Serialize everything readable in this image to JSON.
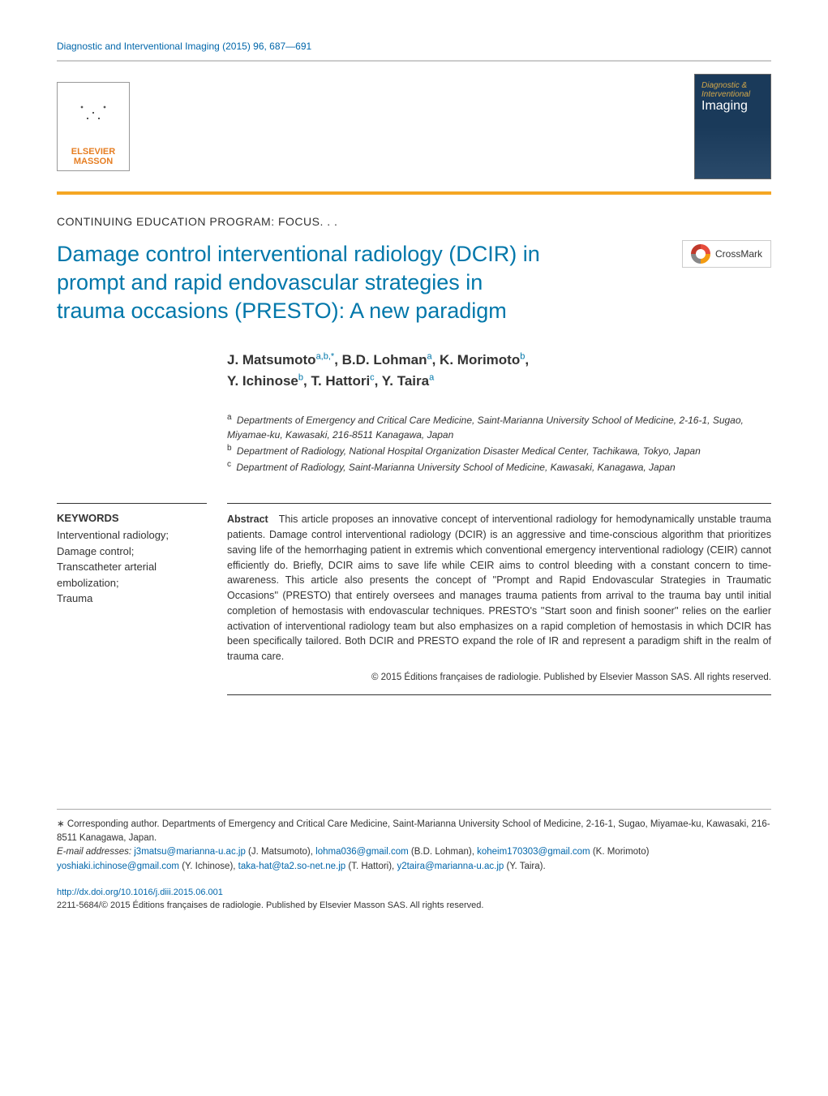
{
  "journal_ref": "Diagnostic and Interventional Imaging (2015) 96, 687—691",
  "publisher_logo": {
    "line1": "ELSEVIER",
    "line2": "MASSON"
  },
  "journal_cover": {
    "small": "Diagnostic & Interventional",
    "large": "Imaging"
  },
  "section_label": "CONTINUING EDUCATION PROGRAM: FOCUS. . .",
  "title": "Damage control interventional radiology (DCIR) in prompt and rapid endovascular strategies in trauma occasions (PRESTO): A new paradigm",
  "crossmark_label": "CrossMark",
  "authors_line1_html": "J. Matsumoto<sup>a,b,*</sup>, B.D. Lohman<sup>a</sup>, K. Morimoto<sup>b</sup>,",
  "authors_line2_html": "Y. Ichinose<sup>b</sup>, T. Hattori<sup>c</sup>, Y. Taira<sup>a</sup>",
  "affiliations": [
    {
      "sup": "a",
      "text": "Departments of Emergency and Critical Care Medicine, Saint-Marianna University School of Medicine, 2-16-1, Sugao, Miyamae-ku, Kawasaki, 216-8511 Kanagawa, Japan"
    },
    {
      "sup": "b",
      "text": "Department of Radiology, National Hospital Organization Disaster Medical Center, Tachikawa, Tokyo, Japan"
    },
    {
      "sup": "c",
      "text": "Department of Radiology, Saint-Marianna University School of Medicine, Kawasaki, Kanagawa, Japan"
    }
  ],
  "keywords_heading": "KEYWORDS",
  "keywords": "Interventional radiology;\nDamage control;\nTranscatheter arterial embolization;\nTrauma",
  "abstract_label": "Abstract",
  "abstract_body": "This article proposes an innovative concept of interventional radiology for hemodynamically unstable trauma patients. Damage control interventional radiology (DCIR) is an aggressive and time-conscious algorithm that prioritizes saving life of the hemorrhaging patient in extremis which conventional emergency interventional radiology (CEIR) cannot efficiently do. Briefly, DCIR aims to save life while CEIR aims to control bleeding with a constant concern to time-awareness. This article also presents the concept of ''Prompt and Rapid Endovascular Strategies in Traumatic Occasions'' (PRESTO) that entirely oversees and manages trauma patients from arrival to the trauma bay until initial completion of hemostasis with endovascular techniques. PRESTO's ''Start soon and finish sooner'' relies on the earlier activation of interventional radiology team but also emphasizes on a rapid completion of hemostasis in which DCIR has been specifically tailored. Both DCIR and PRESTO expand the role of IR and represent a paradigm shift in the realm of trauma care.",
  "abstract_copyright": "© 2015 Éditions françaises de radiologie. Published by Elsevier Masson SAS. All rights reserved.",
  "footer": {
    "corresponding": "∗ Corresponding author. Departments of Emergency and Critical Care Medicine, Saint-Marianna University School of Medicine, 2-16-1, Sugao, Miyamae-ku, Kawasaki, 216-8511 Kanagawa, Japan.",
    "email_label": "E-mail addresses:",
    "emails": [
      {
        "addr": "j3matsu@marianna-u.ac.jp",
        "who": "(J. Matsumoto)"
      },
      {
        "addr": "lohma036@gmail.com",
        "who": "(B.D. Lohman)"
      },
      {
        "addr": "koheim170303@gmail.com",
        "who": "(K. Morimoto)"
      },
      {
        "addr": "yoshiaki.ichinose@gmail.com",
        "who": "(Y. Ichinose)"
      },
      {
        "addr": "taka-hat@ta2.so-net.ne.jp",
        "who": "(T. Hattori)"
      },
      {
        "addr": "y2taira@marianna-u.ac.jp",
        "who": "(Y. Taira)"
      }
    ],
    "doi": "http://dx.doi.org/10.1016/j.diii.2015.06.001",
    "issn_line": "2211-5684/© 2015 Éditions françaises de radiologie. Published by Elsevier Masson SAS. All rights reserved."
  },
  "colors": {
    "link": "#0066aa",
    "title": "#0077aa",
    "accent_bar": "#f5a623",
    "publisher_text": "#e67e22"
  }
}
